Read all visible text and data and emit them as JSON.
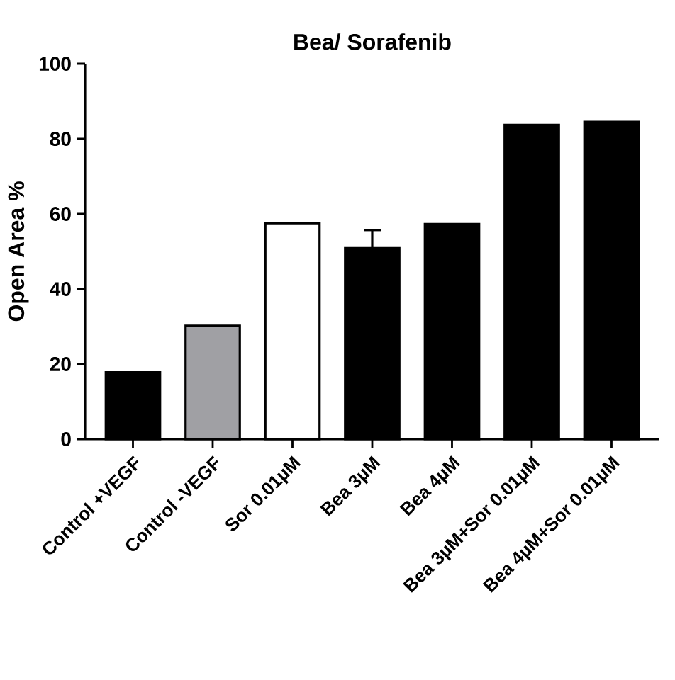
{
  "chart_data": {
    "type": "bar",
    "title": "Bea/ Sorafenib",
    "ylabel": "Open Area %",
    "categories": [
      "Control +VEGF",
      "Control -VEGF",
      "Sor 0.01µM",
      "Bea 3µM",
      "Bea 4µM",
      "Bea 3µM+Sor 0.01µM",
      "Bea 4µM+Sor 0.01µM"
    ],
    "values": [
      17.8,
      30.2,
      57.5,
      50.9,
      57.3,
      83.7,
      84.5
    ],
    "errors": [
      null,
      null,
      null,
      4.8,
      null,
      null,
      null
    ],
    "colors": [
      "#000000",
      "#a0a0a4",
      "#ffffff",
      "#000000",
      "#000000",
      "#000000",
      "#000000"
    ],
    "ylim": [
      0,
      100
    ],
    "yticks": [
      0,
      20,
      40,
      60,
      80,
      100
    ]
  }
}
